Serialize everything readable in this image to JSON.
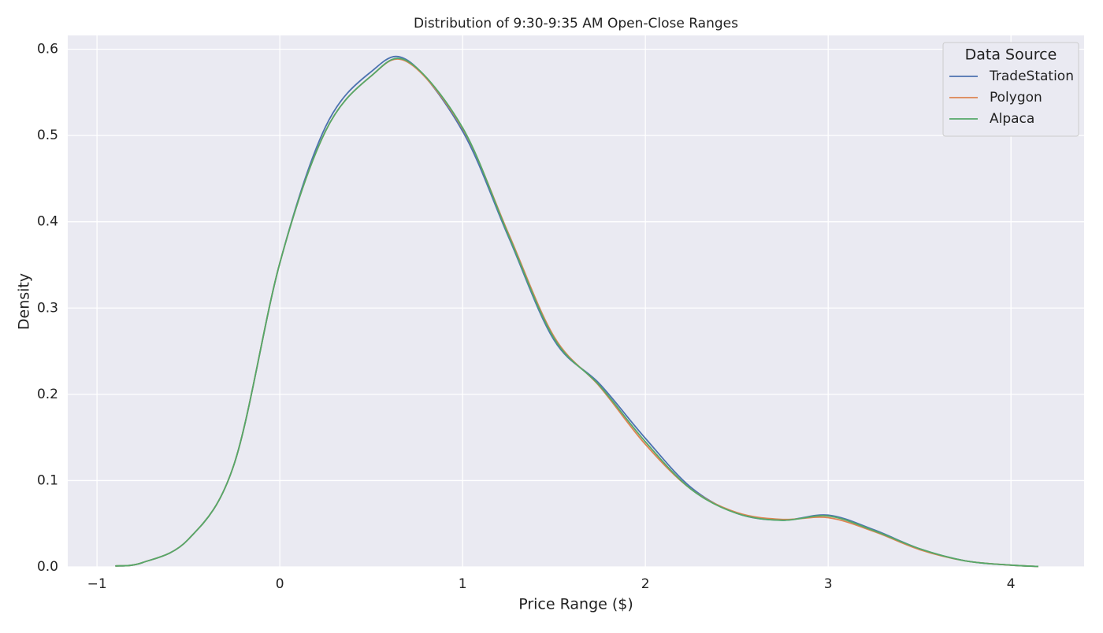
{
  "chart_data": {
    "type": "line",
    "title": "Distribution of 9:30-9:35 AM Open-Close Ranges",
    "xlabel": "Price Range ($)",
    "ylabel": "Density",
    "legend_title": "Data Source",
    "legend": "upper right",
    "grid": true,
    "x": [
      -0.9,
      -0.75,
      -0.5,
      -0.25,
      0,
      0.25,
      0.5,
      0.7,
      1.0,
      1.25,
      1.5,
      1.75,
      2.0,
      2.25,
      2.5,
      2.75,
      3.0,
      3.25,
      3.5,
      3.75,
      4.0,
      4.15
    ],
    "series": [
      {
        "name": "TradeStation",
        "color": "#4c72b0",
        "values": [
          0.001,
          0.005,
          0.032,
          0.119,
          0.352,
          0.51,
          0.574,
          0.587,
          0.505,
          0.383,
          0.263,
          0.212,
          0.149,
          0.092,
          0.062,
          0.054,
          0.06,
          0.043,
          0.021,
          0.007,
          0.002,
          0.0005
        ]
      },
      {
        "name": "Polygon",
        "color": "#dd8452",
        "values": [
          0.001,
          0.005,
          0.032,
          0.119,
          0.352,
          0.505,
          0.569,
          0.585,
          0.508,
          0.387,
          0.267,
          0.209,
          0.142,
          0.09,
          0.063,
          0.055,
          0.057,
          0.041,
          0.02,
          0.007,
          0.002,
          0.0005
        ]
      },
      {
        "name": "Alpaca",
        "color": "#55a868",
        "values": [
          0.001,
          0.005,
          0.032,
          0.119,
          0.352,
          0.505,
          0.569,
          0.586,
          0.509,
          0.385,
          0.265,
          0.21,
          0.145,
          0.09,
          0.062,
          0.054,
          0.059,
          0.042,
          0.021,
          0.007,
          0.002,
          0.0005
        ]
      }
    ],
    "xlim": [
      -1.16,
      4.4
    ],
    "ylim": [
      0,
      0.616
    ],
    "xticks": [
      {
        "value": -1,
        "label": "−1"
      },
      0,
      1,
      2,
      3,
      4
    ],
    "yticks": [
      {
        "value": 0,
        "label": "0.0"
      },
      0.1,
      0.2,
      0.3,
      0.4,
      0.5,
      0.6
    ]
  }
}
